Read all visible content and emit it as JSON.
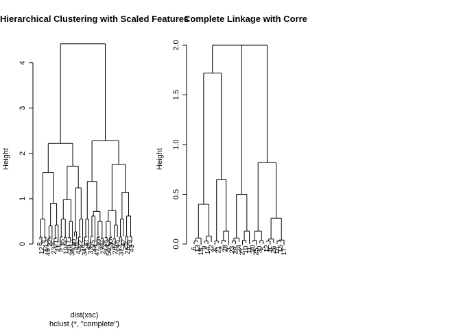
{
  "chart_data": [
    {
      "type": "dendrogram",
      "title": "Hierarchical Clustering with Scaled Features",
      "ylabel": "Height",
      "xlabel": "dist(xsc)",
      "sub": "hclust (*, \"complete\")",
      "ylim": [
        0,
        4.6
      ],
      "yticks": [
        0,
        1,
        2,
        3,
        4
      ],
      "root_height": 4.42,
      "leaf_labels": [
        "8",
        "12",
        "4",
        "14",
        "49",
        "22",
        "9",
        "23",
        "21",
        "11",
        "5",
        "15",
        "7",
        "19",
        "17",
        "20",
        "36",
        "40",
        "16",
        "45",
        "22",
        "10",
        "34",
        "41",
        "48",
        "33",
        "35",
        "44",
        "47",
        "39",
        "31",
        "27",
        "38",
        "24",
        "50",
        "30",
        "32",
        "28",
        "46",
        "13",
        "37",
        "42",
        "25",
        "26",
        "29",
        "43"
      ],
      "clusters": [
        {
          "group": "left",
          "height": 2.22,
          "sub": [
            1.58,
            1.72
          ],
          "leaves": 20
        },
        {
          "group": "right",
          "height": 2.28,
          "sub": [
            1.38,
            1.76
          ],
          "leaves": 26
        }
      ]
    },
    {
      "type": "dendrogram",
      "title": "Complete Linkage with Correlation-Based Distance",
      "ylabel": "Height",
      "ylim": [
        0,
        2.0
      ],
      "yticks": [
        0.0,
        0.5,
        1.0,
        1.5,
        2.0
      ],
      "ytick_labels": [
        "0.0",
        "0.5",
        "1.0",
        "1.5",
        "2.0"
      ],
      "root_height": 2.0,
      "leaf_labels": [
        "6",
        "13",
        "18",
        "9",
        "14",
        "22",
        "4",
        "21",
        "2",
        "28",
        "3",
        "23",
        "29",
        "24",
        "27",
        "10",
        "11",
        "20",
        "25",
        "30",
        "5",
        "12",
        "8",
        "26",
        "16",
        "15",
        "17"
      ],
      "clusters": [
        {
          "group": "a",
          "height": 1.72,
          "sub": [
            0.4,
            0.65
          ]
        },
        {
          "group": "b",
          "height": 0.5
        },
        {
          "group": "c",
          "height": 0.82,
          "sub": [
            0.26
          ]
        }
      ]
    }
  ]
}
